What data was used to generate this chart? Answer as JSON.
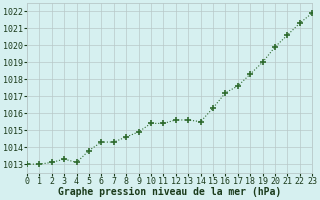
{
  "x": [
    0,
    1,
    2,
    3,
    4,
    5,
    6,
    7,
    8,
    9,
    10,
    11,
    12,
    13,
    14,
    15,
    16,
    17,
    18,
    19,
    20,
    21,
    22,
    23
  ],
  "y": [
    1013.0,
    1013.0,
    1013.1,
    1013.3,
    1013.1,
    1013.8,
    1014.3,
    1014.3,
    1014.6,
    1014.9,
    1015.4,
    1015.4,
    1015.6,
    1015.6,
    1015.5,
    1016.3,
    1017.2,
    1017.6,
    1018.3,
    1019.0,
    1019.9,
    1020.6,
    1021.3,
    1021.9
  ],
  "ylim": [
    1012.5,
    1022.5
  ],
  "yticks": [
    1013,
    1014,
    1015,
    1016,
    1017,
    1018,
    1019,
    1020,
    1021,
    1022
  ],
  "xticks": [
    0,
    1,
    2,
    3,
    4,
    5,
    6,
    7,
    8,
    9,
    10,
    11,
    12,
    13,
    14,
    15,
    16,
    17,
    18,
    19,
    20,
    21,
    22,
    23
  ],
  "xlim": [
    0,
    23
  ],
  "line_color": "#2d6a2d",
  "marker_color": "#2d6a2d",
  "bg_color": "#d6f0f0",
  "grid_color": "#b8c8c8",
  "xlabel": "Graphe pression niveau de la mer (hPa)",
  "xlabel_color": "#1a3a1a",
  "xlabel_fontsize": 7.0,
  "tick_fontsize": 6.0,
  "line_width": 0.8,
  "marker_size": 4.0
}
